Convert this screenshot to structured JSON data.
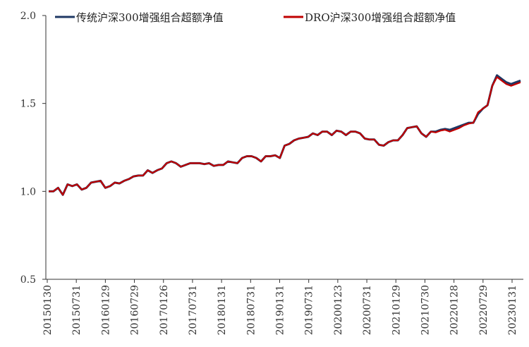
{
  "chart_data": {
    "type": "line",
    "title": "",
    "xlabel": "",
    "ylabel": "",
    "ylim": [
      0.5,
      2.0
    ],
    "yticks": [
      "2.0",
      "1.5",
      "1.0",
      "0.5"
    ],
    "grid": false,
    "legend_position": "top",
    "x_tick_labels": [
      "20150130",
      "20150731",
      "20160129",
      "20160729",
      "20170126",
      "20170731",
      "20180131",
      "20180731",
      "20190131",
      "20190731",
      "20200123",
      "20200731",
      "20210129",
      "20210730",
      "20220128",
      "20220729",
      "20230131"
    ],
    "x": [
      "201501",
      "201502",
      "201503",
      "201504",
      "201505",
      "201506",
      "201507",
      "201508",
      "201509",
      "201510",
      "201511",
      "201512",
      "201601",
      "201602",
      "201603",
      "201604",
      "201605",
      "201606",
      "201607",
      "201608",
      "201609",
      "201610",
      "201611",
      "201612",
      "201701",
      "201702",
      "201703",
      "201704",
      "201705",
      "201706",
      "201707",
      "201708",
      "201709",
      "201710",
      "201711",
      "201712",
      "201801",
      "201802",
      "201803",
      "201804",
      "201805",
      "201806",
      "201807",
      "201808",
      "201809",
      "201810",
      "201811",
      "201812",
      "201901",
      "201902",
      "201903",
      "201904",
      "201905",
      "201906",
      "201907",
      "201908",
      "201909",
      "201910",
      "201911",
      "201912",
      "202001",
      "202002",
      "202003",
      "202004",
      "202005",
      "202006",
      "202007",
      "202008",
      "202009",
      "202010",
      "202011",
      "202012",
      "202101",
      "202102",
      "202103",
      "202104",
      "202105",
      "202106",
      "202107",
      "202108",
      "202109",
      "202110",
      "202111",
      "202112",
      "202201",
      "202202",
      "202203",
      "202204",
      "202205",
      "202206",
      "202207",
      "202208",
      "202209",
      "202210",
      "202211",
      "202212",
      "202301",
      "202302",
      "202303",
      "202304",
      "202305"
    ],
    "series": [
      {
        "name": "传统沪深300增强组合超额净值",
        "color": "#1f3864",
        "values": [
          1.0,
          1.0,
          1.02,
          0.98,
          1.04,
          1.03,
          1.04,
          1.01,
          1.02,
          1.05,
          1.055,
          1.06,
          1.02,
          1.03,
          1.05,
          1.045,
          1.06,
          1.07,
          1.085,
          1.09,
          1.09,
          1.12,
          1.105,
          1.12,
          1.13,
          1.16,
          1.17,
          1.16,
          1.14,
          1.15,
          1.16,
          1.16,
          1.16,
          1.155,
          1.16,
          1.145,
          1.15,
          1.15,
          1.17,
          1.165,
          1.16,
          1.19,
          1.2,
          1.2,
          1.19,
          1.17,
          1.2,
          1.2,
          1.205,
          1.19,
          1.26,
          1.27,
          1.29,
          1.3,
          1.305,
          1.31,
          1.33,
          1.32,
          1.34,
          1.34,
          1.32,
          1.345,
          1.34,
          1.32,
          1.34,
          1.34,
          1.33,
          1.3,
          1.295,
          1.295,
          1.265,
          1.26,
          1.28,
          1.29,
          1.29,
          1.32,
          1.36,
          1.365,
          1.37,
          1.33,
          1.31,
          1.34,
          1.34,
          1.35,
          1.355,
          1.35,
          1.36,
          1.37,
          1.38,
          1.39,
          1.39,
          1.44,
          1.47,
          1.49,
          1.6,
          1.66,
          1.64,
          1.62,
          1.61,
          1.62,
          1.63
        ]
      },
      {
        "name": "DRO沪深300增强组合超额净值",
        "color": "#c00000",
        "values": [
          1.0,
          1.0,
          1.02,
          0.98,
          1.04,
          1.03,
          1.04,
          1.01,
          1.02,
          1.05,
          1.055,
          1.06,
          1.02,
          1.03,
          1.05,
          1.045,
          1.06,
          1.07,
          1.085,
          1.09,
          1.09,
          1.12,
          1.105,
          1.12,
          1.13,
          1.16,
          1.17,
          1.16,
          1.14,
          1.15,
          1.16,
          1.16,
          1.16,
          1.155,
          1.16,
          1.145,
          1.15,
          1.15,
          1.17,
          1.165,
          1.16,
          1.19,
          1.2,
          1.2,
          1.19,
          1.17,
          1.2,
          1.2,
          1.205,
          1.19,
          1.26,
          1.27,
          1.29,
          1.3,
          1.305,
          1.31,
          1.33,
          1.32,
          1.34,
          1.34,
          1.32,
          1.345,
          1.34,
          1.32,
          1.34,
          1.34,
          1.33,
          1.3,
          1.295,
          1.295,
          1.265,
          1.26,
          1.28,
          1.29,
          1.29,
          1.32,
          1.36,
          1.365,
          1.37,
          1.33,
          1.31,
          1.34,
          1.335,
          1.345,
          1.35,
          1.34,
          1.35,
          1.36,
          1.375,
          1.385,
          1.39,
          1.45,
          1.47,
          1.49,
          1.6,
          1.65,
          1.63,
          1.61,
          1.6,
          1.61,
          1.62
        ]
      }
    ]
  }
}
